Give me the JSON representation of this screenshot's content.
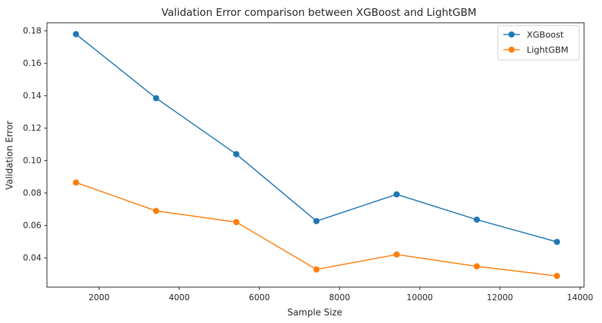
{
  "chart_data": {
    "type": "line",
    "title": "Validation Error comparison between XGBoost and LightGBM",
    "xlabel": "Sample Size",
    "ylabel": "Validation Error",
    "xlim": [
      700,
      14100
    ],
    "ylim": [
      0.022,
      0.185
    ],
    "xticks": [
      2000,
      4000,
      6000,
      8000,
      10000,
      12000,
      14000
    ],
    "yticks": [
      0.04,
      0.06,
      0.08,
      0.1,
      0.12,
      0.14,
      0.16,
      0.18
    ],
    "grid": false,
    "legend_position": "top-right",
    "x": [
      1424,
      3424,
      5424,
      7424,
      9424,
      11424,
      13424
    ],
    "series": [
      {
        "name": "XGBoost",
        "color": "#1f77b4",
        "values": [
          0.178,
          0.1385,
          0.104,
          0.0627,
          0.0792,
          0.0636,
          0.0499
        ]
      },
      {
        "name": "LightGBM",
        "color": "#ff7f0e",
        "values": [
          0.0865,
          0.069,
          0.0621,
          0.0329,
          0.0421,
          0.0348,
          0.0289
        ]
      }
    ]
  }
}
